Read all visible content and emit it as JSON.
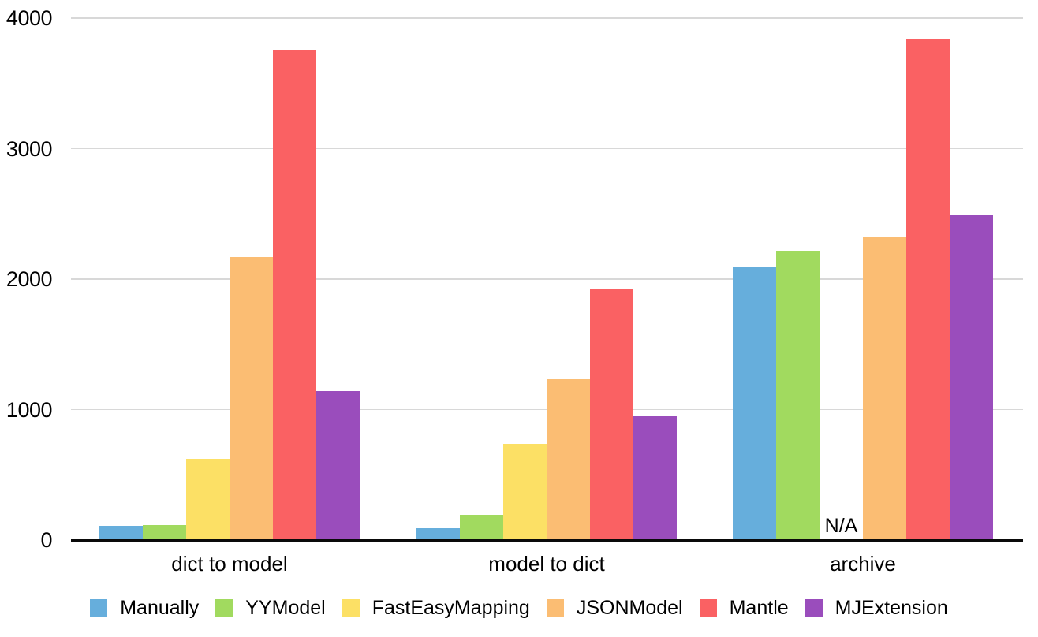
{
  "chart_data": {
    "type": "bar",
    "categories": [
      "dict to model",
      "model to dict",
      "archive"
    ],
    "series": [
      {
        "name": "Manually",
        "color": "#66AEDC",
        "values": [
          110,
          90,
          2090
        ]
      },
      {
        "name": "YYModel",
        "color": "#A1DA5F",
        "values": [
          115,
          195,
          2210
        ]
      },
      {
        "name": "FastEasyMapping",
        "color": "#FCE065",
        "values": [
          620,
          740,
          null
        ]
      },
      {
        "name": "JSONModel",
        "color": "#FBBD73",
        "values": [
          2170,
          1230,
          2320
        ]
      },
      {
        "name": "Mantle",
        "color": "#FA6163",
        "values": [
          3760,
          1930,
          3840
        ]
      },
      {
        "name": "MJExtension",
        "color": "#9A4DBC",
        "values": [
          1140,
          950,
          2490
        ]
      }
    ],
    "missing_value_label": "N/A",
    "ylim": [
      0,
      4000
    ],
    "yticks": [
      0,
      1000,
      2000,
      3000,
      4000
    ],
    "grid": true,
    "legend_position": "bottom"
  },
  "colors": {
    "background": "#FFFFFF",
    "axis": "#0A0A0A",
    "gridline": "#D8D8D8",
    "text": "#000000"
  }
}
